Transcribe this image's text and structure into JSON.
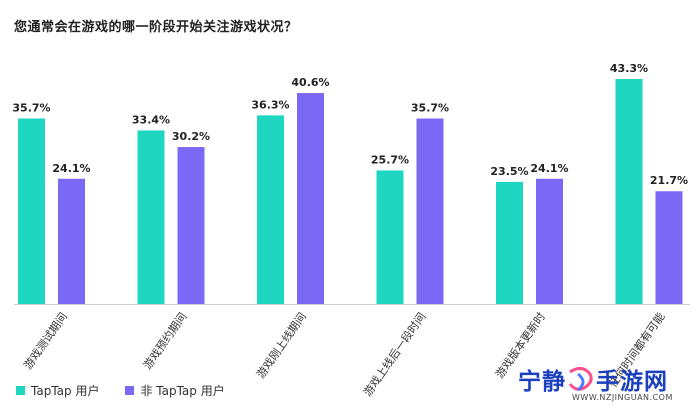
{
  "title": "您通常会在游戏的哪一阶段开始关注游戏状况？",
  "watermark": {
    "brand": "宁静",
    "brand2": "手游网",
    "url": "WWW.NZJINGUAN.COM"
  },
  "chart_data": {
    "type": "bar",
    "categories": [
      "游戏测试期间",
      "游戏预约期间",
      "游戏刚上线期间",
      "游戏上线后一段时间",
      "游戏版本更新时",
      "任何时间都有可能"
    ],
    "series": [
      {
        "name": "TapTap 用户",
        "color": "#1fd6c1",
        "values": [
          35.7,
          33.4,
          36.3,
          25.7,
          23.5,
          43.3
        ]
      },
      {
        "name": "非 TapTap 用户",
        "color": "#7b68f5",
        "values": [
          24.1,
          30.2,
          40.6,
          35.7,
          24.1,
          21.7
        ]
      }
    ],
    "value_labels": [
      [
        "35.7%",
        "33.4%",
        "36.3%",
        "25.7%",
        "23.5%",
        "43.3%"
      ],
      [
        "24.1%",
        "30.2%",
        "40.6%",
        "35.7%",
        "24.1%",
        "21.7%"
      ]
    ],
    "ylim": [
      0,
      43.3
    ],
    "legend_position": "bottom-left"
  }
}
